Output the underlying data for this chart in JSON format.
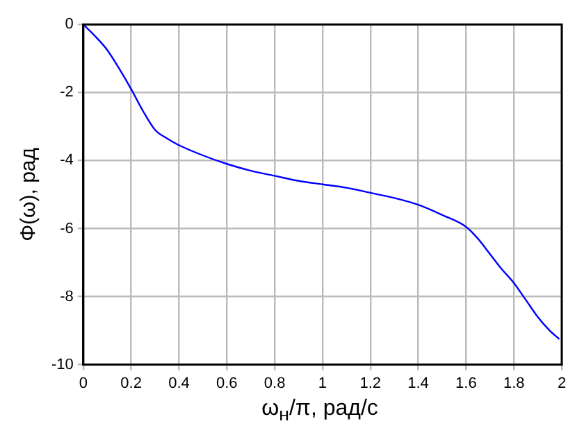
{
  "chart_data": {
    "type": "line",
    "xlabel": "ω$_{н}$/π, рад/с",
    "ylabel": "Φ(ω), рад",
    "series": [
      {
        "color": "#0000ff",
        "x": [
          0,
          0.05,
          0.1,
          0.15,
          0.2,
          0.25,
          0.3,
          0.35,
          0.4,
          0.5,
          0.6,
          0.7,
          0.8,
          0.9,
          1.0,
          1.1,
          1.2,
          1.3,
          1.4,
          1.5,
          1.6,
          1.65,
          1.7,
          1.75,
          1.8,
          1.85,
          1.9,
          1.95,
          1.99
        ],
        "values": [
          0,
          -0.35,
          -0.75,
          -1.3,
          -1.9,
          -2.55,
          -3.1,
          -3.35,
          -3.55,
          -3.85,
          -4.1,
          -4.3,
          -4.45,
          -4.6,
          -4.7,
          -4.8,
          -4.95,
          -5.1,
          -5.3,
          -5.6,
          -5.95,
          -6.3,
          -6.75,
          -7.2,
          -7.6,
          -8.1,
          -8.6,
          -9.0,
          -9.25
        ]
      }
    ],
    "xlim": [
      0,
      2
    ],
    "xticks": [
      0,
      0.2,
      0.4,
      0.6,
      0.8,
      1,
      1.2,
      1.4,
      1.6,
      1.8,
      2
    ],
    "ylim": [
      -10,
      0
    ],
    "yticks": [
      -10,
      -8,
      -6,
      -4,
      -2,
      0
    ],
    "grid": true,
    "legend": false,
    "marker": "none",
    "line_style": "solid"
  }
}
